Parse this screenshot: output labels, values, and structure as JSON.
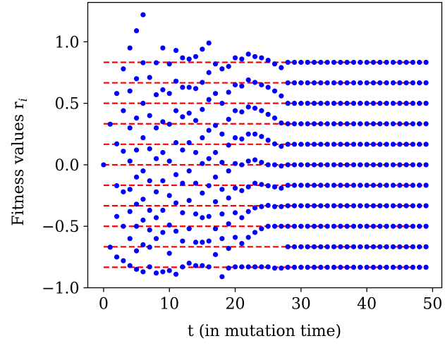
{
  "chart_data": {
    "type": "scatter",
    "xlabel": "t (in mutation time)",
    "ylabel": "Fitness values r",
    "ylabel_subscript": "i",
    "xlim": [
      -2.4,
      51.4
    ],
    "ylim": [
      -1.0,
      1.32
    ],
    "xticks": [
      0,
      10,
      20,
      30,
      40,
      50
    ],
    "xtick_labels": [
      "0",
      "10",
      "20",
      "30",
      "40",
      "50"
    ],
    "yticks": [
      -1.0,
      -0.5,
      0.0,
      0.5,
      1.0
    ],
    "ytick_labels": [
      "−1.0",
      "−0.5",
      "0.0",
      "0.5",
      "1.0"
    ],
    "grid": false,
    "colors": {
      "points": "#0000ff",
      "reference_lines": "#ff0000"
    },
    "reference_lines": {
      "style": "dashed",
      "x_range": [
        0,
        49
      ],
      "y": [
        -0.8333,
        -0.6667,
        -0.5,
        -0.3333,
        -0.1667,
        0.0,
        0.1667,
        0.3333,
        0.5,
        0.6667,
        0.8333
      ]
    },
    "series": [
      {
        "values": [
          [
            0,
            0.0
          ],
          [
            1,
            0.33
          ],
          [
            1,
            -0.67
          ],
          [
            2,
            0.58
          ],
          [
            2,
            0.17
          ],
          [
            2,
            -0.17
          ],
          [
            2,
            -0.42
          ],
          [
            2,
            -0.75
          ],
          [
            3,
            0.78
          ],
          [
            3,
            0.44
          ],
          [
            3,
            0.11
          ],
          [
            3,
            -0.22
          ],
          [
            3,
            -0.5
          ],
          [
            3,
            -0.78
          ],
          [
            4,
            0.95
          ],
          [
            4,
            0.6
          ],
          [
            4,
            0.3
          ],
          [
            4,
            0.03
          ],
          [
            4,
            -0.2
          ],
          [
            4,
            -0.38
          ],
          [
            4,
            -0.6
          ],
          [
            4,
            -0.82
          ],
          [
            5,
            1.09
          ],
          [
            5,
            0.7
          ],
          [
            5,
            0.38
          ],
          [
            5,
            0.12
          ],
          [
            5,
            -0.1
          ],
          [
            5,
            -0.32
          ],
          [
            5,
            -0.5
          ],
          [
            5,
            -0.7
          ],
          [
            5,
            -0.85
          ],
          [
            6,
            1.22
          ],
          [
            6,
            0.83
          ],
          [
            6,
            0.5
          ],
          [
            6,
            0.22
          ],
          [
            6,
            -0.05
          ],
          [
            6,
            -0.28
          ],
          [
            6,
            -0.45
          ],
          [
            6,
            -0.65
          ],
          [
            6,
            -0.87
          ],
          [
            7,
            0.71
          ],
          [
            7,
            0.4
          ],
          [
            7,
            0.13
          ],
          [
            7,
            -0.13
          ],
          [
            7,
            -0.37
          ],
          [
            7,
            -0.53
          ],
          [
            7,
            -0.67
          ],
          [
            7,
            -0.83
          ],
          [
            8,
            0.83
          ],
          [
            8,
            0.57
          ],
          [
            8,
            0.3
          ],
          [
            8,
            0.05
          ],
          [
            8,
            -0.22
          ],
          [
            8,
            -0.43
          ],
          [
            8,
            -0.6
          ],
          [
            8,
            -0.88
          ],
          [
            9,
            0.95
          ],
          [
            9,
            0.61
          ],
          [
            9,
            0.35
          ],
          [
            9,
            0.1
          ],
          [
            9,
            -0.13
          ],
          [
            9,
            -0.37
          ],
          [
            9,
            -0.55
          ],
          [
            9,
            -0.87
          ],
          [
            10,
            0.82
          ],
          [
            10,
            0.58
          ],
          [
            10,
            0.33
          ],
          [
            10,
            0.03
          ],
          [
            10,
            -0.25
          ],
          [
            10,
            -0.49
          ],
          [
            10,
            -0.72
          ],
          [
            10,
            -0.86
          ],
          [
            11,
            0.93
          ],
          [
            11,
            0.68
          ],
          [
            11,
            0.44
          ],
          [
            11,
            0.18
          ],
          [
            11,
            -0.08
          ],
          [
            11,
            -0.31
          ],
          [
            11,
            -0.54
          ],
          [
            11,
            -0.89
          ],
          [
            12,
            0.87
          ],
          [
            12,
            0.63
          ],
          [
            12,
            0.39
          ],
          [
            12,
            0.12
          ],
          [
            12,
            -0.15
          ],
          [
            12,
            -0.39
          ],
          [
            12,
            -0.62
          ],
          [
            12,
            -0.83
          ],
          [
            13,
            0.86
          ],
          [
            13,
            0.63
          ],
          [
            13,
            0.42
          ],
          [
            13,
            0.18
          ],
          [
            13,
            -0.05
          ],
          [
            13,
            -0.29
          ],
          [
            13,
            -0.52
          ],
          [
            13,
            -0.8
          ],
          [
            14,
            0.88
          ],
          [
            14,
            0.62
          ],
          [
            14,
            0.36
          ],
          [
            14,
            0.1
          ],
          [
            14,
            -0.15
          ],
          [
            14,
            -0.4
          ],
          [
            14,
            -0.63
          ],
          [
            14,
            -0.82
          ],
          [
            15,
            0.94
          ],
          [
            15,
            0.67
          ],
          [
            15,
            0.45
          ],
          [
            15,
            0.22
          ],
          [
            15,
            0.01
          ],
          [
            15,
            -0.23
          ],
          [
            15,
            -0.43
          ],
          [
            15,
            -0.63
          ],
          [
            15,
            -0.82
          ],
          [
            16,
            0.99
          ],
          [
            16,
            0.75
          ],
          [
            16,
            0.53
          ],
          [
            16,
            0.28
          ],
          [
            16,
            0.05
          ],
          [
            16,
            -0.17
          ],
          [
            16,
            -0.42
          ],
          [
            16,
            -0.62
          ],
          [
            16,
            -0.83
          ],
          [
            17,
            0.82
          ],
          [
            17,
            0.58
          ],
          [
            17,
            0.32
          ],
          [
            17,
            0.1
          ],
          [
            17,
            -0.1
          ],
          [
            17,
            -0.3
          ],
          [
            17,
            -0.52
          ],
          [
            17,
            -0.73
          ],
          [
            18,
            0.78
          ],
          [
            18,
            0.5
          ],
          [
            18,
            0.25
          ],
          [
            18,
            0.02
          ],
          [
            18,
            -0.2
          ],
          [
            18,
            -0.4
          ],
          [
            18,
            -0.6
          ],
          [
            18,
            -0.91
          ],
          [
            19,
            0.8
          ],
          [
            19,
            0.59
          ],
          [
            19,
            0.37
          ],
          [
            19,
            0.16
          ],
          [
            19,
            -0.05
          ],
          [
            19,
            -0.27
          ],
          [
            19,
            -0.48
          ],
          [
            19,
            -0.68
          ],
          [
            19,
            -0.84
          ],
          [
            20,
            0.87
          ],
          [
            20,
            0.65
          ],
          [
            20,
            0.44
          ],
          [
            20,
            0.22
          ],
          [
            20,
            0.01
          ],
          [
            20,
            -0.19
          ],
          [
            20,
            -0.39
          ],
          [
            20,
            -0.59
          ],
          [
            20,
            -0.83
          ],
          [
            21,
            0.86
          ],
          [
            21,
            0.64
          ],
          [
            21,
            0.43
          ],
          [
            21,
            0.21
          ],
          [
            21,
            0.0
          ],
          [
            21,
            -0.21
          ],
          [
            21,
            -0.43
          ],
          [
            21,
            -0.64
          ],
          [
            21,
            -0.83
          ],
          [
            22,
            0.9
          ],
          [
            22,
            0.69
          ],
          [
            22,
            0.47
          ],
          [
            22,
            0.25
          ],
          [
            22,
            0.03
          ],
          [
            22,
            -0.18
          ],
          [
            22,
            -0.38
          ],
          [
            22,
            -0.59
          ],
          [
            22,
            -0.83
          ],
          [
            23,
            0.88
          ],
          [
            23,
            0.67
          ],
          [
            23,
            0.46
          ],
          [
            23,
            0.25
          ],
          [
            23,
            0.04
          ],
          [
            23,
            -0.15
          ],
          [
            23,
            -0.35
          ],
          [
            23,
            -0.55
          ],
          [
            23,
            -0.83
          ],
          [
            24,
            0.87
          ],
          [
            24,
            0.65
          ],
          [
            24,
            0.44
          ],
          [
            24,
            0.23
          ],
          [
            24,
            0.02
          ],
          [
            24,
            -0.16
          ],
          [
            24,
            -0.34
          ],
          [
            24,
            -0.52
          ],
          [
            24,
            -0.83
          ],
          [
            25,
            0.85
          ],
          [
            25,
            0.63
          ],
          [
            25,
            0.41
          ],
          [
            25,
            0.2
          ],
          [
            25,
            0.0
          ],
          [
            25,
            -0.17
          ],
          [
            25,
            -0.33
          ],
          [
            25,
            -0.5
          ],
          [
            25,
            -0.83
          ],
          [
            26,
            0.82
          ],
          [
            26,
            0.6
          ],
          [
            26,
            0.38
          ],
          [
            26,
            0.17
          ],
          [
            26,
            0.0
          ],
          [
            26,
            -0.18
          ],
          [
            26,
            -0.34
          ],
          [
            26,
            -0.5
          ],
          [
            26,
            -0.84
          ],
          [
            27,
            0.79
          ],
          [
            27,
            0.56
          ],
          [
            27,
            0.34
          ],
          [
            27,
            0.15
          ],
          [
            27,
            -0.01
          ],
          [
            27,
            -0.19
          ],
          [
            27,
            -0.34
          ],
          [
            27,
            -0.5
          ],
          [
            27,
            -0.84
          ]
        ]
      }
    ]
  }
}
